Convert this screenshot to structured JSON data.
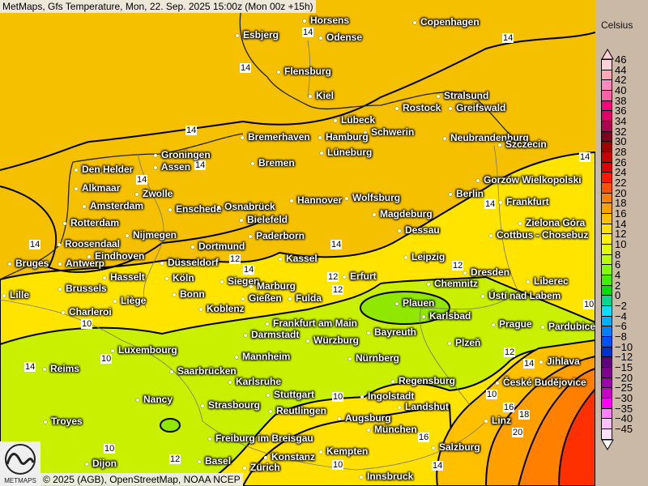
{
  "title": "MetMaps, Gfs Temperature, Mon, 22. Sep. 2025 15:00z (Mon 00z +15h)",
  "footer": "© 2025 (AGB), OpenStreetMap, NOAA NCEP",
  "logo_text": "METMAPS",
  "legend": {
    "unit": "Celsius",
    "levels": [
      "46",
      "44",
      "42",
      "40",
      "38",
      "36",
      "34",
      "32",
      "30",
      "28",
      "26",
      "24",
      "22",
      "20",
      "18",
      "16",
      "14",
      "12",
      "10",
      "8",
      "6",
      "4",
      "2",
      "0",
      "−2",
      "−4",
      "−6",
      "−8",
      "−10",
      "−12",
      "−15",
      "−20",
      "−25",
      "−30",
      "−35",
      "−40",
      "−45"
    ],
    "colors": [
      "#fcd0d8",
      "#ffa8b8",
      "#ff88c0",
      "#ff60a8",
      "#ff0080",
      "#e0006a",
      "#b00050",
      "#800020",
      "#a00000",
      "#c80000",
      "#e00000",
      "#ff1800",
      "#ff5000",
      "#ff8000",
      "#ffa000",
      "#ffc000",
      "#ffe000",
      "#fff200",
      "#e0ff00",
      "#b8ff00",
      "#80ff00",
      "#40f000",
      "#00e000",
      "#00d890",
      "#00e0ff",
      "#00b0ff",
      "#0080ff",
      "#0050ff",
      "#0030d0",
      "#600080",
      "#800090",
      "#a000b0",
      "#c800c8",
      "#ff00ff",
      "#ff80ff",
      "#ffc0ff",
      "#ffe0ff"
    ]
  },
  "cities": [
    "Horsens",
    "Copenhagen",
    "Esbjerg",
    "Odense",
    "Flensburg",
    "Kiel",
    "Stralsund",
    "Rostock",
    "Greifswald",
    "Lübeck",
    "Schwerin",
    "Neubrandenburg",
    "Szczecin",
    "Bremerhaven",
    "Hamburg",
    "Groningen",
    "Assen",
    "Lüneburg",
    "Bremen",
    "Den Helder",
    "Gorzów Wielkopolski",
    "Alkmaar",
    "Zwolle",
    "Amsterdam",
    "Berlin",
    "Hannover",
    "Wolfsburg",
    "Frankfurt",
    "Enschede",
    "Osnabrück",
    "Rotterdam",
    "Bielefeld",
    "Magdeburg",
    "Nijmegen",
    "Zielona Góra",
    "Paderborn",
    "Dessau",
    "Cottbus - Chosebuz",
    "Roosendaal",
    "Eindhoven",
    "Dortmund",
    "Bruges",
    "Antwerp",
    "Düsseldorf",
    "Kassel",
    "Leipzig",
    "Dresden",
    "Hasselt",
    "Köln",
    "Erfurt",
    "Brussels",
    "Siegen",
    "Marburg",
    "Bonn",
    "Liège",
    "Chemnitz",
    "Ústí nad Labem",
    "Liberec",
    "Lille",
    "Gießen",
    "Fulda",
    "Koblenz",
    "Charleroi",
    "Plauen",
    "Karlsbad",
    "Frankfurt am Main",
    "Prague",
    "Pardubice",
    "Darmstadt",
    "Bayreuth",
    "Würzburg",
    "Plzeň",
    "Luxembourg",
    "Mannheim",
    "Nürnberg",
    "Jihlava",
    "Reims",
    "Saarbrücken",
    "Regensburg",
    "České Budějovice",
    "Karlsruhe",
    "Stuttgart",
    "Ingolstadt",
    "Nancy",
    "Strasbourg",
    "Landshut",
    "Reutlingen",
    "Troyes",
    "Augsburg",
    "Linz",
    "München",
    "Freiburg im Breisgau",
    "Salzburg",
    "Kempten",
    "Konstanz",
    "Basel",
    "Zürich",
    "Dijon",
    "Innsbruck"
  ],
  "contour_labels": [
    "14",
    "14",
    "14",
    "14",
    "14",
    "14",
    "14",
    "14",
    "12",
    "12",
    "14",
    "12",
    "14",
    "14",
    "12",
    "10",
    "10",
    "10",
    "10",
    "10",
    "14",
    "12",
    "14",
    "16",
    "18",
    "20",
    "16",
    "10",
    "12",
    "10",
    "14"
  ],
  "colors": {
    "north_band": "#f5c000",
    "mid_band": "#ffe400",
    "south_band": "#c8f000",
    "warm_se": "#ffa000",
    "hot_se": "#ff3000"
  }
}
